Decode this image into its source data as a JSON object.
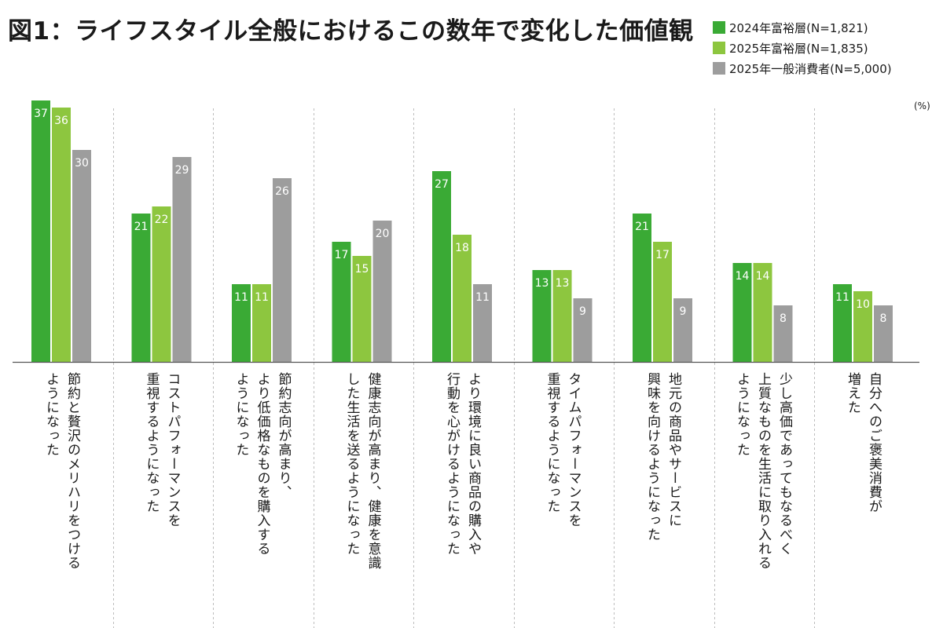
{
  "chart_data": {
    "type": "bar",
    "title": "図1：ライフスタイル全般におけるこの数年で変化した価値観",
    "unit": "(%)",
    "ylim": [
      0,
      40
    ],
    "legend_position": "top-right",
    "grid": false,
    "categories": [
      "節約と贅沢のメリハリをつける\nようになった",
      "コストパフォーマンスを\n重視するようになった",
      "節約志向が高まり、\nより低価格なものを購入する\nようになった",
      "健康志向が高まり、健康を意識\nした生活を送るようになった",
      "より環境に良い商品の購入や\n行動を心がけるようになった",
      "タイムパフォーマンスを\n重視するようになった",
      "地元の商品やサービスに\n興味を向けるようになった",
      "少し高価であってもなるべく\n上質なものを生活に取り入れる\nようになった",
      "自分へのご褒美消費が\n増えた"
    ],
    "series": [
      {
        "name": "2024年富裕層(N=1,821)",
        "color": "#3aaa35",
        "values": [
          37,
          21,
          11,
          17,
          27,
          13,
          21,
          14,
          11
        ]
      },
      {
        "name": "2025年富裕層(N=1,835)",
        "color": "#8dc63f",
        "values": [
          36,
          22,
          11,
          15,
          18,
          13,
          17,
          14,
          10
        ]
      },
      {
        "name": "2025年一般消費者(N=5,000)",
        "color": "#9d9d9d",
        "values": [
          30,
          29,
          26,
          20,
          11,
          9,
          9,
          8,
          8
        ]
      }
    ]
  }
}
